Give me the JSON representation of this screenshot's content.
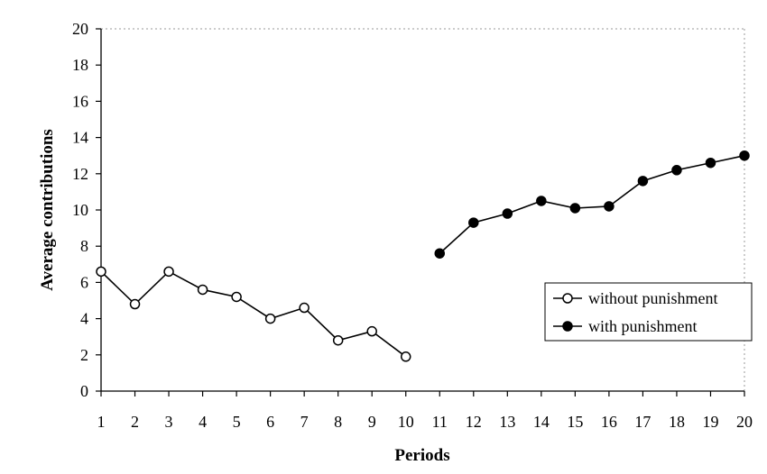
{
  "chart_data": {
    "type": "line",
    "title": "",
    "xlabel": "Periods",
    "ylabel": "Average contributions",
    "xlim": [
      1,
      20
    ],
    "ylim": [
      0,
      20
    ],
    "x_ticks": [
      "1",
      "2",
      "3",
      "4",
      "5",
      "6",
      "7",
      "8",
      "9",
      "10",
      "11",
      "12",
      "13",
      "14",
      "15",
      "16",
      "17",
      "18",
      "19",
      "20"
    ],
    "y_ticks": [
      "0",
      "2",
      "4",
      "6",
      "8",
      "10",
      "12",
      "14",
      "16",
      "18",
      "20"
    ],
    "grid": false,
    "legend_position": "right",
    "series": [
      {
        "name": "without punishment",
        "marker": "open-circle",
        "color": "#000000",
        "x": [
          1,
          2,
          3,
          4,
          5,
          6,
          7,
          8,
          9,
          10
        ],
        "values": [
          6.6,
          4.8,
          6.6,
          5.6,
          5.2,
          4.0,
          4.6,
          2.8,
          3.3,
          1.9
        ]
      },
      {
        "name": "with punishment",
        "marker": "filled-circle",
        "color": "#000000",
        "x": [
          11,
          12,
          13,
          14,
          15,
          16,
          17,
          18,
          19,
          20
        ],
        "values": [
          7.6,
          9.3,
          9.8,
          10.5,
          10.1,
          10.2,
          11.6,
          12.2,
          12.6,
          13.0
        ]
      }
    ]
  }
}
